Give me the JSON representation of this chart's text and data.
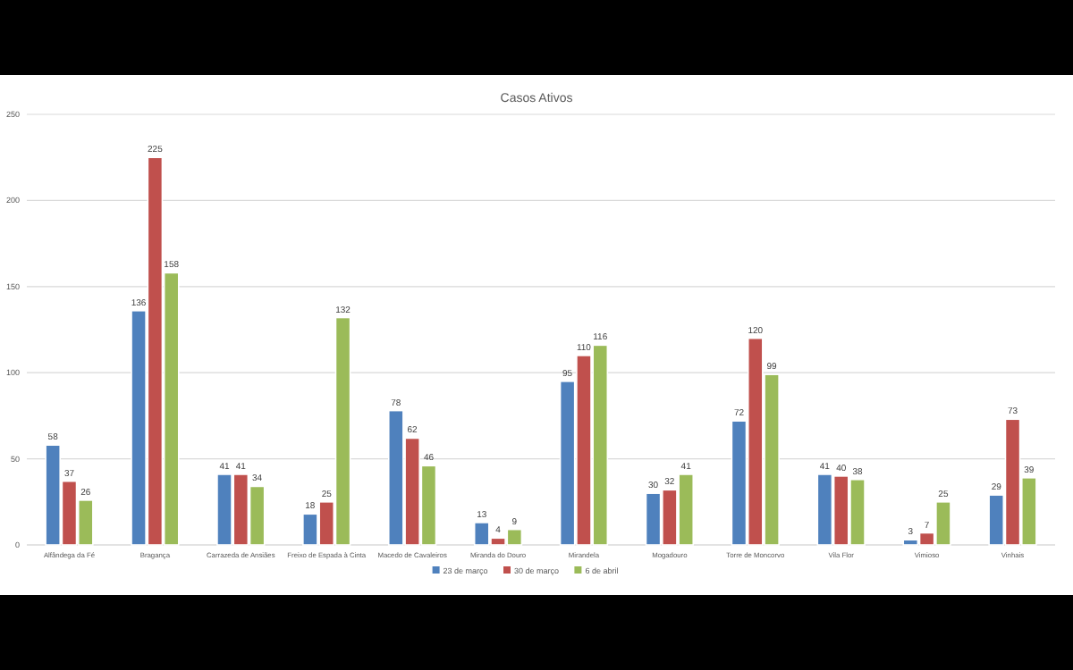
{
  "chart_data": {
    "type": "bar",
    "title": "Casos Ativos",
    "categories": [
      "Alfândega da Fé",
      "Bragança",
      "Carrazeda de Ansiães",
      "Freixo de Espada à Cinta",
      "Macedo de Cavaleiros",
      "Miranda do Douro",
      "Mirandela",
      "Mogadouro",
      "Torre de Moncorvo",
      "Vila Flor",
      "Vimioso",
      "Vinhais"
    ],
    "series": [
      {
        "name": "23 de março",
        "color": "#4f81bd",
        "values": [
          58,
          136,
          41,
          18,
          78,
          13,
          95,
          30,
          72,
          41,
          3,
          29
        ]
      },
      {
        "name": "30 de março",
        "color": "#c0504d",
        "values": [
          37,
          225,
          41,
          25,
          62,
          4,
          110,
          32,
          120,
          40,
          7,
          73
        ]
      },
      {
        "name": "6 de abril",
        "color": "#9bbb59",
        "values": [
          26,
          158,
          34,
          132,
          46,
          9,
          116,
          41,
          99,
          38,
          25,
          39
        ]
      }
    ],
    "ylim": [
      0,
      250
    ],
    "yticks": [
      0,
      50,
      100,
      150,
      200,
      250
    ],
    "grid": "y",
    "legend": "bottom",
    "data_labels": true
  }
}
